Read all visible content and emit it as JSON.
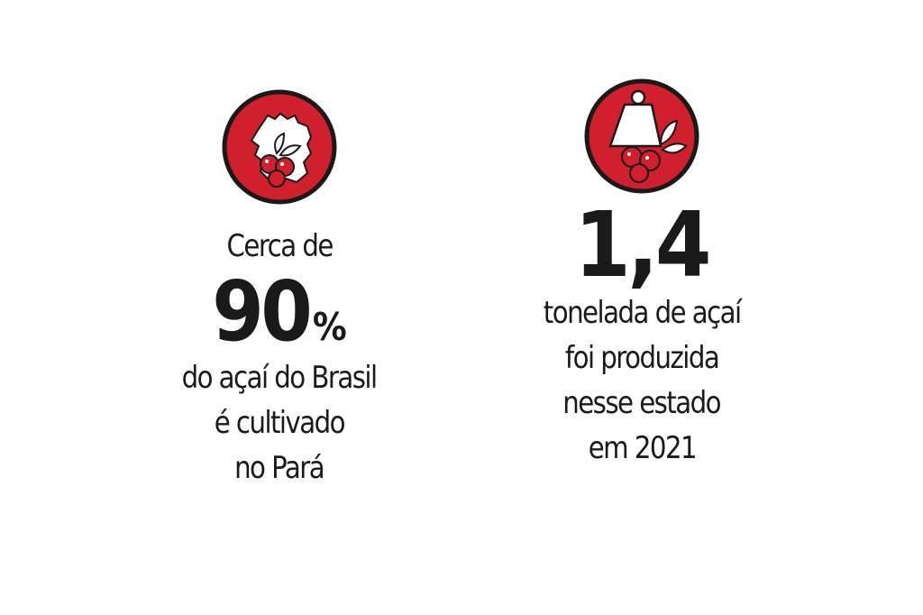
{
  "colors": {
    "accent": "#d01f2d",
    "text": "#1a1a1a",
    "outline": "#1a1a1a"
  },
  "stat_left": {
    "icon": "para-map-acai-icon",
    "prefix": "Cerca de",
    "value": "90",
    "unit": "%",
    "lines": [
      "do açaí do Brasil",
      "é cultivado",
      "no Pará"
    ]
  },
  "stat_right": {
    "icon": "weight-acai-icon",
    "value": "1,4",
    "lines": [
      "tonelada de açaí",
      "foi produzida",
      "nesse estado",
      "em 2021"
    ]
  }
}
